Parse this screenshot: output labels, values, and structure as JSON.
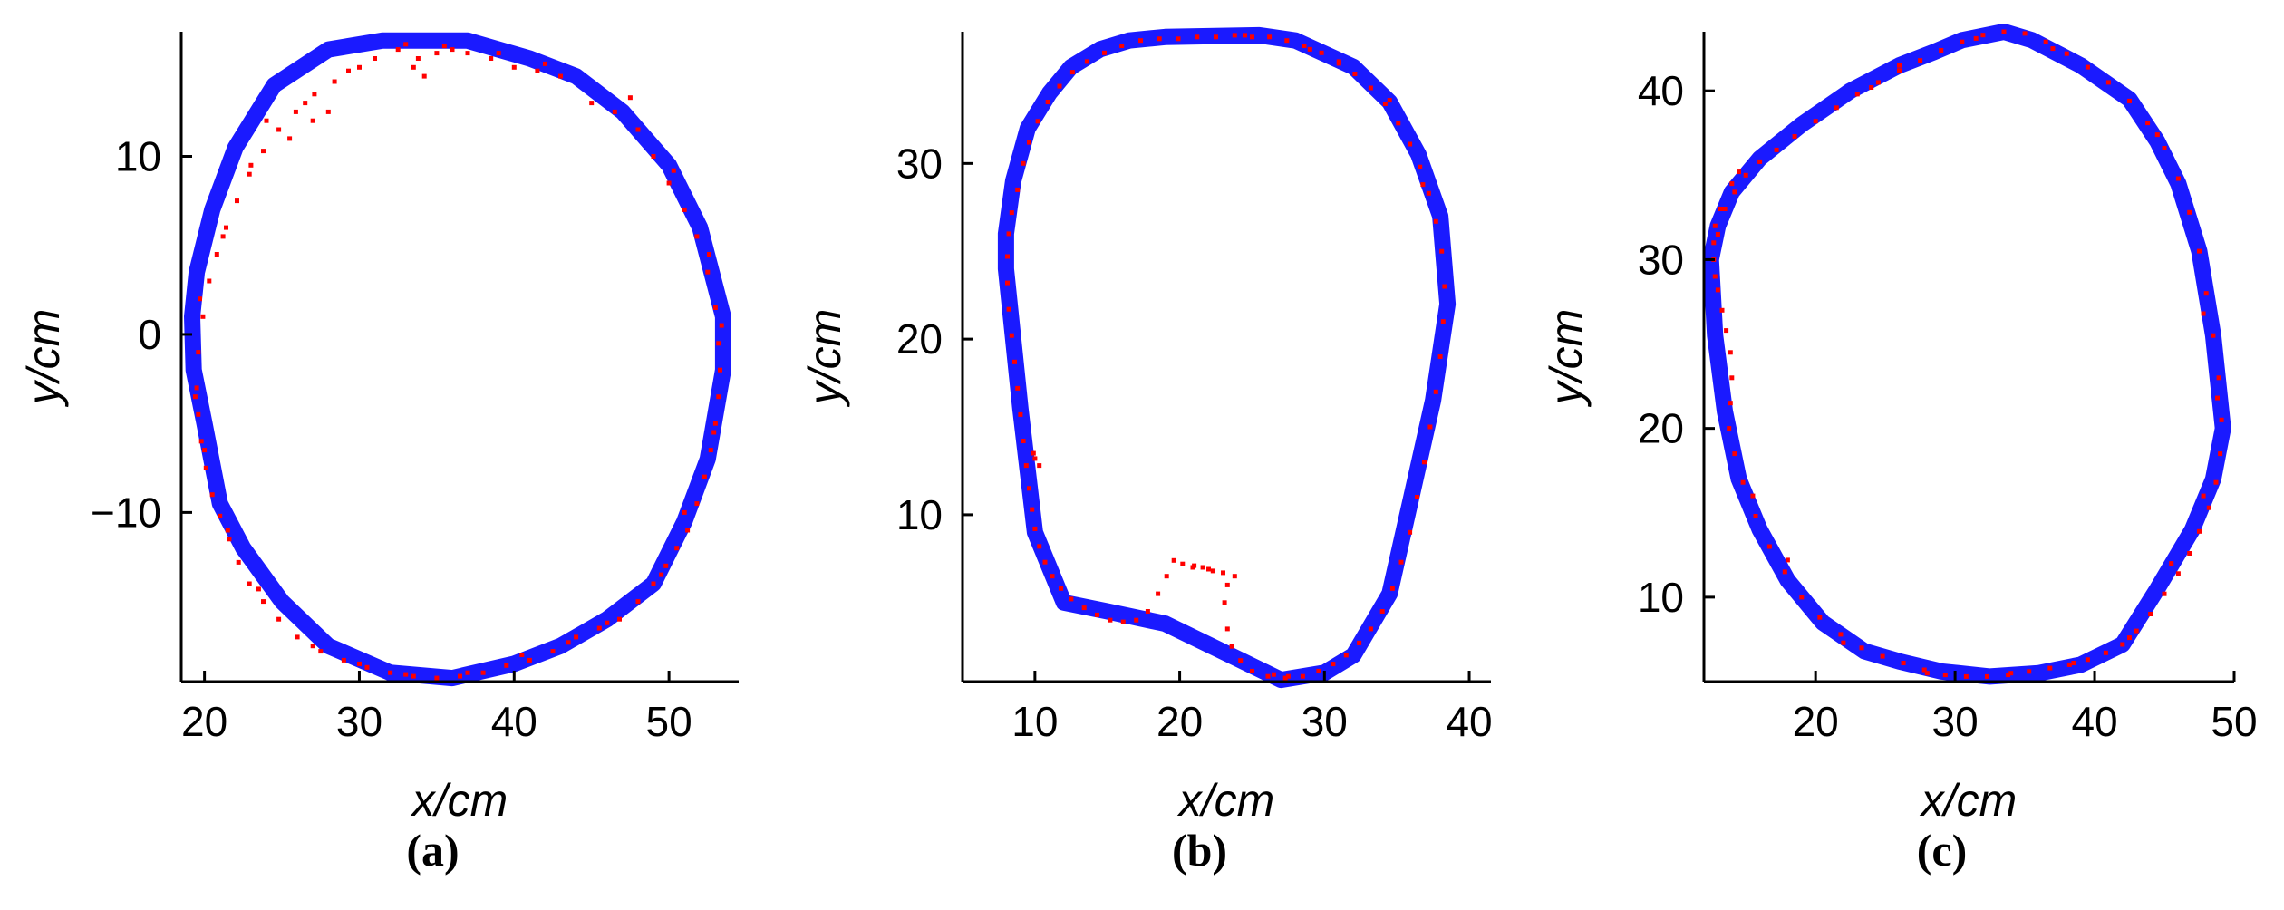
{
  "chart_data": [
    {
      "type": "line",
      "caption": "(a)",
      "xlabel": "x/cm",
      "ylabel": "y/cm",
      "xlim": [
        18.5,
        54.5
      ],
      "ylim": [
        -19.5,
        17
      ],
      "xticks": [
        20,
        30,
        40,
        50
      ],
      "yticks": [
        -10,
        0,
        10
      ],
      "grid": false,
      "series": [
        {
          "role": "reference-boundary",
          "color": "#0000ff",
          "x": [
            35.0,
            37.0,
            41.0,
            44.0,
            47.0,
            50.0,
            52.0,
            53.5,
            53.5,
            52.5,
            51.0,
            49.0,
            46.0,
            43.0,
            40.0,
            36.0,
            32.0,
            28.0,
            25.0,
            22.5,
            21.0,
            20.0,
            19.3,
            19.2,
            19.5,
            20.5,
            22.0,
            24.5,
            28.0,
            31.5,
            35.0
          ],
          "y": [
            16.5,
            16.5,
            15.5,
            14.5,
            12.5,
            9.5,
            6.0,
            1.0,
            -2.0,
            -7.0,
            -10.5,
            -14.0,
            -16.0,
            -17.5,
            -18.5,
            -19.3,
            -19.0,
            -17.5,
            -15.0,
            -12.0,
            -9.5,
            -5.0,
            -2.0,
            1.0,
            3.5,
            7.0,
            10.5,
            14.0,
            16.0,
            16.5,
            16.5
          ]
        },
        {
          "role": "measured-points",
          "color": "#ff0000",
          "x": [
            30.0,
            31.0,
            32.5,
            33.5,
            34.2,
            35.0,
            36.0,
            37.0,
            38.5,
            40.0,
            41.5,
            43.0,
            45.0,
            46.5,
            48.0,
            49.0,
            50.0,
            51.0,
            51.8,
            52.5,
            53.0,
            53.2,
            53.3,
            53.2,
            53.0,
            52.7,
            52.3,
            51.8,
            51.2,
            50.5,
            49.8,
            49.0,
            48.0,
            46.8,
            45.5,
            44.0,
            42.5,
            41.0,
            39.5,
            38.0,
            36.5,
            35.0,
            33.5,
            32.0,
            30.5,
            29.0,
            27.5,
            26.0,
            24.8,
            23.8,
            22.9,
            22.2,
            21.6,
            21.0,
            20.5,
            20.1,
            19.8,
            19.6,
            19.5,
            19.6,
            19.9,
            20.3,
            20.8,
            21.4,
            22.1,
            22.9,
            23.8,
            24.8,
            25.9,
            27.1,
            28.4,
            29.3,
            24.0,
            25.5,
            27.0,
            28.0,
            33.0,
            33.8,
            35.5,
            39.0,
            42.0,
            47.5,
            50.3,
            52.6,
            53.4,
            52.9,
            51.0,
            49.5,
            46.0,
            43.5,
            40.5,
            37.0,
            33.0,
            30.0,
            27.0,
            23.5,
            21.5,
            20.0,
            19.4,
            19.7,
            21.2,
            23.0,
            26.5
          ],
          "y": [
            15.0,
            15.5,
            16.0,
            15.0,
            14.5,
            15.8,
            16.0,
            15.8,
            15.5,
            15.0,
            14.8,
            14.5,
            13.0,
            12.5,
            11.5,
            10.0,
            8.5,
            7.0,
            5.5,
            3.5,
            1.5,
            -0.5,
            -2.0,
            -3.5,
            -5.0,
            -6.5,
            -8.0,
            -9.5,
            -11.0,
            -12.0,
            -13.0,
            -14.0,
            -15.0,
            -16.0,
            -16.5,
            -17.0,
            -17.8,
            -18.3,
            -18.6,
            -19.0,
            -19.2,
            -19.3,
            -19.2,
            -19.0,
            -18.7,
            -18.3,
            -17.8,
            -17.0,
            -16.0,
            -15.0,
            -14.0,
            -12.8,
            -11.5,
            -10.2,
            -9.0,
            -7.5,
            -6.0,
            -4.5,
            -3.0,
            -1.0,
            1.0,
            3.0,
            4.5,
            6.0,
            7.5,
            9.0,
            10.3,
            11.5,
            12.5,
            13.5,
            14.2,
            14.8,
            12.0,
            11.0,
            12.0,
            12.5,
            16.3,
            15.5,
            16.2,
            15.8,
            15.2,
            13.3,
            9.2,
            4.5,
            0.5,
            -5.5,
            -10.0,
            -13.5,
            -16.2,
            -17.3,
            -18.0,
            -19.0,
            -19.1,
            -18.5,
            -17.5,
            -14.3,
            -11.0,
            -6.5,
            -3.5,
            2.0,
            5.5,
            9.5,
            13.0
          ]
        }
      ]
    },
    {
      "type": "line",
      "caption": "(b)",
      "xlabel": "x/cm",
      "ylabel": "y/cm",
      "xlim": [
        5,
        41.5
      ],
      "ylim": [
        0.5,
        37.5
      ],
      "xticks": [
        10,
        20,
        30,
        40
      ],
      "yticks": [
        10,
        20,
        30
      ],
      "grid": false,
      "series": [
        {
          "role": "reference-boundary",
          "color": "#0000ff",
          "x": [
            19.0,
            25.5,
            28.0,
            32.0,
            34.5,
            36.5,
            38.0,
            38.5,
            37.5,
            36.0,
            34.5,
            32.0,
            30.0,
            27.0,
            24.0,
            19.0,
            15.0,
            12.0,
            10.0,
            9.5,
            9.0,
            8.5,
            8.0,
            8.0,
            8.5,
            9.5,
            11.0,
            12.5,
            14.5,
            16.5,
            19.0
          ],
          "y": [
            37.2,
            37.3,
            37.0,
            35.5,
            33.5,
            30.5,
            27.0,
            22.0,
            16.5,
            11.0,
            5.5,
            2.0,
            1.0,
            0.6,
            1.8,
            3.8,
            4.5,
            5.0,
            9.0,
            12.5,
            16.0,
            20.0,
            24.0,
            26.0,
            29.0,
            32.0,
            34.0,
            35.5,
            36.5,
            37.0,
            37.2
          ]
        },
        {
          "role": "measured-points",
          "color": "#ff0000",
          "x": [
            8.8,
            9.2,
            9.6,
            10.2,
            10.9,
            11.7,
            12.6,
            13.6,
            14.8,
            16.0,
            17.3,
            18.6,
            19.9,
            21.2,
            22.5,
            23.8,
            25.0,
            26.2,
            27.4,
            28.6,
            29.8,
            31.0,
            32.1,
            33.2,
            34.2,
            35.1,
            35.9,
            36.6,
            37.2,
            37.7,
            38.1,
            38.3,
            38.2,
            38.0,
            37.7,
            37.3,
            36.9,
            36.4,
            35.9,
            35.3,
            34.7,
            34.0,
            33.2,
            32.4,
            31.5,
            30.6,
            29.6,
            28.5,
            27.3,
            26.1,
            25.0,
            24.2,
            23.6,
            23.3,
            23.1,
            23.3,
            23.8,
            23.0,
            22.3,
            21.6,
            20.9,
            20.2,
            19.6,
            19.1,
            18.5,
            17.8,
            17.0,
            16.1,
            15.2,
            14.3,
            13.4,
            12.5,
            11.8,
            11.2,
            10.7,
            10.3,
            10.0,
            9.8,
            9.6,
            9.4,
            9.2,
            9.0,
            8.8,
            8.6,
            8.4,
            8.2,
            8.1,
            8.1,
            8.2,
            8.4,
            10.0,
            10.3,
            9.9,
            26.5,
            27.5,
            22.0,
            21.0,
            36.8,
            34.5,
            31.0,
            29.0,
            24.5
          ],
          "y": [
            28.5,
            30.0,
            31.2,
            32.4,
            33.5,
            34.4,
            35.2,
            35.8,
            36.3,
            36.7,
            37.0,
            37.1,
            37.1,
            37.2,
            37.2,
            37.3,
            37.2,
            37.2,
            37.0,
            36.7,
            36.3,
            35.8,
            35.1,
            34.3,
            33.4,
            32.3,
            31.1,
            29.8,
            28.3,
            26.7,
            25.0,
            23.0,
            21.0,
            19.0,
            17.0,
            15.0,
            13.0,
            11.0,
            9.0,
            7.3,
            5.8,
            4.5,
            3.5,
            2.7,
            2.0,
            1.5,
            1.1,
            0.8,
            0.7,
            0.8,
            1.1,
            1.7,
            2.5,
            3.5,
            5.0,
            6.0,
            6.5,
            6.7,
            6.8,
            7.0,
            7.0,
            7.2,
            7.4,
            6.5,
            5.5,
            4.5,
            4.0,
            3.9,
            4.0,
            4.3,
            4.7,
            5.2,
            5.8,
            6.5,
            7.3,
            8.2,
            9.2,
            10.3,
            11.5,
            12.8,
            14.2,
            15.7,
            17.2,
            18.7,
            20.2,
            21.7,
            23.2,
            24.7,
            26.0,
            27.2,
            13.2,
            12.8,
            13.5,
            0.9,
            0.8,
            6.9,
            7.1,
            28.8,
            33.6,
            35.7,
            36.5,
            37.3
          ]
        }
      ]
    },
    {
      "type": "line",
      "caption": "(c)",
      "xlabel": "x/cm",
      "ylabel": "y/cm",
      "xlim": [
        12,
        50
      ],
      "ylim": [
        5,
        43.5
      ],
      "xticks": [
        20,
        30,
        40,
        50
      ],
      "yticks": [
        10,
        20,
        30,
        40
      ],
      "grid": false,
      "series": [
        {
          "role": "reference-boundary",
          "color": "#0000ff",
          "x": [
            30.5,
            33.5,
            35.5,
            39.0,
            42.5,
            44.5,
            46.0,
            47.5,
            48.5,
            49.2,
            48.5,
            47.0,
            44.5,
            42.0,
            39.0,
            36.0,
            32.5,
            29.0,
            26.0,
            23.5,
            20.5,
            18.0,
            16.0,
            14.5,
            13.5,
            12.8,
            12.5,
            13.0,
            14.0,
            16.0,
            19.0,
            22.5,
            26.0,
            28.5,
            30.5
          ],
          "y": [
            43.0,
            43.5,
            43.0,
            41.5,
            39.5,
            37.0,
            34.5,
            30.5,
            25.5,
            20.0,
            17.0,
            14.0,
            10.5,
            7.2,
            6.0,
            5.5,
            5.3,
            5.6,
            6.2,
            6.8,
            8.5,
            11.0,
            14.0,
            17.0,
            21.0,
            25.5,
            30.0,
            32.0,
            34.0,
            36.0,
            38.0,
            40.0,
            41.5,
            42.3,
            43.0
          ]
        },
        {
          "role": "measured-points",
          "color": "#ff0000",
          "x": [
            13.0,
            13.5,
            14.2,
            15.0,
            16.0,
            17.2,
            18.5,
            20.0,
            21.5,
            23.0,
            24.5,
            26.0,
            27.5,
            29.0,
            30.5,
            32.0,
            33.5,
            35.0,
            36.5,
            38.0,
            39.5,
            41.0,
            42.5,
            43.8,
            45.0,
            46.0,
            46.8,
            47.5,
            48.0,
            48.5,
            48.9,
            49.1,
            49.0,
            48.7,
            48.2,
            47.5,
            46.8,
            46.0,
            45.0,
            44.0,
            43.0,
            42.0,
            40.8,
            39.5,
            38.2,
            36.8,
            35.3,
            33.8,
            32.3,
            30.8,
            29.3,
            27.8,
            26.3,
            24.8,
            23.3,
            21.8,
            20.3,
            19.0,
            17.8,
            16.7,
            15.7,
            14.8,
            14.2,
            13.8,
            13.9,
            14.0,
            13.9,
            13.6,
            13.3,
            13.0,
            12.8,
            12.7,
            12.7,
            12.8,
            13.2,
            14.0,
            14.5,
            24.0,
            26.0,
            31.5,
            37.0,
            44.5,
            47.8,
            48.8,
            47.8,
            45.5,
            42.5,
            38.5,
            34.0,
            28.0,
            22.0,
            18.0,
            15.5
          ],
          "y": [
            31.5,
            33.0,
            34.0,
            35.0,
            35.8,
            36.5,
            37.3,
            38.2,
            39.0,
            39.8,
            40.5,
            41.2,
            41.8,
            42.4,
            42.9,
            43.3,
            43.5,
            43.4,
            42.9,
            42.2,
            41.4,
            40.5,
            39.4,
            38.1,
            36.6,
            34.8,
            32.8,
            30.5,
            28.0,
            25.5,
            23.0,
            20.5,
            18.5,
            16.8,
            15.3,
            13.9,
            12.6,
            11.4,
            10.2,
            9.0,
            8.0,
            7.2,
            6.7,
            6.3,
            6.0,
            5.8,
            5.6,
            5.4,
            5.3,
            5.3,
            5.4,
            5.7,
            6.1,
            6.5,
            7.0,
            7.8,
            8.8,
            10.0,
            11.5,
            13.0,
            14.8,
            16.8,
            18.5,
            20.0,
            21.5,
            23.0,
            24.5,
            25.8,
            27.0,
            28.2,
            29.0,
            30.0,
            31.0,
            32.0,
            33.0,
            34.5,
            35.2,
            40.2,
            41.5,
            43.1,
            42.5,
            37.4,
            26.8,
            21.8,
            16.0,
            12.0,
            7.6,
            6.1,
            5.5,
            5.5,
            7.3,
            12.2,
            16.0
          ]
        }
      ]
    }
  ]
}
